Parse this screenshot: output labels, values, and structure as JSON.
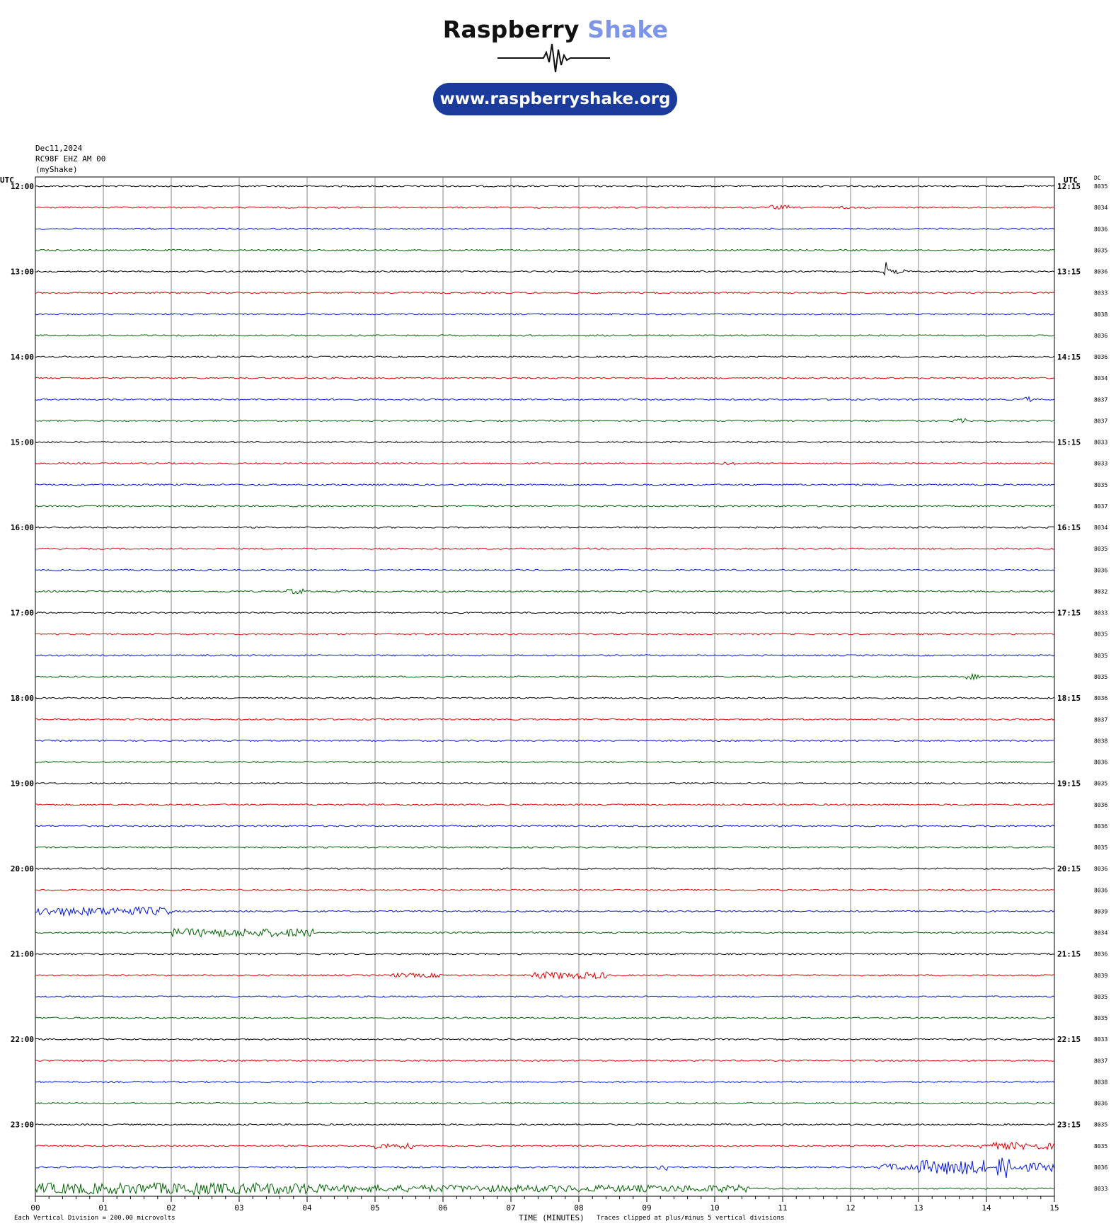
{
  "logo": {
    "brand_word1": "Raspberry",
    "brand_word2": "Shake",
    "url": "www.raspberryshake.org",
    "colors": {
      "dark": "#111111",
      "light": "#7d95e8",
      "pill": "#1a3a9c"
    }
  },
  "header": {
    "date": "Dec11,2024",
    "station": "RC98F EHZ AM 00",
    "network": "(myShake)"
  },
  "footer": {
    "scale": "Each Vertical Division =  200.00 microvolts",
    "xlabel": "TIME (MINUTES)",
    "clip_note": "Traces clipped at plus/minus 5 vertical divisions"
  },
  "chart_data": {
    "type": "line",
    "title": "",
    "left_axis_title": "UTC",
    "right_axis_title": "UTC",
    "dc_title": "DC",
    "xlabel": "TIME (MINUTES)",
    "xlim": [
      0,
      15
    ],
    "x_ticks": [
      "00",
      "01",
      "02",
      "03",
      "04",
      "05",
      "06",
      "07",
      "08",
      "09",
      "10",
      "11",
      "12",
      "13",
      "14",
      "15"
    ],
    "grid": true,
    "colors": [
      "#000000",
      "#e00000",
      "#0018d8",
      "#006400"
    ],
    "left_labels": [
      "12:00",
      "13:00",
      "14:00",
      "15:00",
      "16:00",
      "17:00",
      "18:00",
      "19:00",
      "20:00",
      "21:00",
      "22:00",
      "23:00"
    ],
    "right_labels": [
      "12:15",
      "13:15",
      "14:15",
      "15:15",
      "16:15",
      "17:15",
      "18:15",
      "19:15",
      "20:15",
      "21:15",
      "22:15",
      "23:15"
    ],
    "dc_values": [
      "8035",
      "8034",
      "8036",
      "8035",
      "8036",
      "8033",
      "8038",
      "8036",
      "8036",
      "8034",
      "8037",
      "8037",
      "8033",
      "8033",
      "8035",
      "8037",
      "8034",
      "8035",
      "8036",
      "8032",
      "8033",
      "8035",
      "8035",
      "8035",
      "8036",
      "8037",
      "8038",
      "8036",
      "8035",
      "8036",
      "8036",
      "8035",
      "8036",
      "8036",
      "8039",
      "8034",
      "8036",
      "8039",
      "8035",
      "8035",
      "8033",
      "8037",
      "8038",
      "8036",
      "8035",
      "8035",
      "8036",
      "8033"
    ],
    "events": [
      {
        "trace": 1,
        "start": 10.8,
        "end": 11.1,
        "amp": 3
      },
      {
        "trace": 1,
        "start": 11.8,
        "end": 12.0,
        "amp": 2
      },
      {
        "trace": 4,
        "start": 12.48,
        "end": 12.56,
        "amp": 20
      },
      {
        "trace": 4,
        "start": 12.56,
        "end": 12.8,
        "amp": 3
      },
      {
        "trace": 10,
        "start": 14.55,
        "end": 14.65,
        "amp": 4
      },
      {
        "trace": 11,
        "start": 13.5,
        "end": 13.7,
        "amp": 3
      },
      {
        "trace": 13,
        "start": 10.0,
        "end": 10.4,
        "amp": 2
      },
      {
        "trace": 19,
        "start": 3.7,
        "end": 3.95,
        "amp": 4
      },
      {
        "trace": 23,
        "start": 13.7,
        "end": 13.9,
        "amp": 4
      },
      {
        "trace": 34,
        "start": 0.0,
        "end": 2.0,
        "amp": 6
      },
      {
        "trace": 35,
        "start": 2.0,
        "end": 4.1,
        "amp": 6
      },
      {
        "trace": 37,
        "start": 5.2,
        "end": 6.0,
        "amp": 3
      },
      {
        "trace": 37,
        "start": 7.3,
        "end": 8.4,
        "amp": 5
      },
      {
        "trace": 45,
        "start": 5.0,
        "end": 5.6,
        "amp": 4
      },
      {
        "trace": 45,
        "start": 13.9,
        "end": 15.0,
        "amp": 5
      },
      {
        "trace": 46,
        "start": 9.15,
        "end": 9.3,
        "amp": 6
      },
      {
        "trace": 46,
        "start": 12.4,
        "end": 13.0,
        "amp": 5
      },
      {
        "trace": 46,
        "start": 13.0,
        "end": 14.0,
        "amp": 10
      },
      {
        "trace": 46,
        "start": 14.15,
        "end": 14.35,
        "amp": 22
      },
      {
        "trace": 46,
        "start": 14.35,
        "end": 15.0,
        "amp": 6
      },
      {
        "trace": 47,
        "start": 0.0,
        "end": 4.2,
        "amp": 8
      },
      {
        "trace": 47,
        "start": 2.3,
        "end": 2.4,
        "amp": 14
      },
      {
        "trace": 47,
        "start": 4.2,
        "end": 10.5,
        "amp": 5
      }
    ]
  }
}
